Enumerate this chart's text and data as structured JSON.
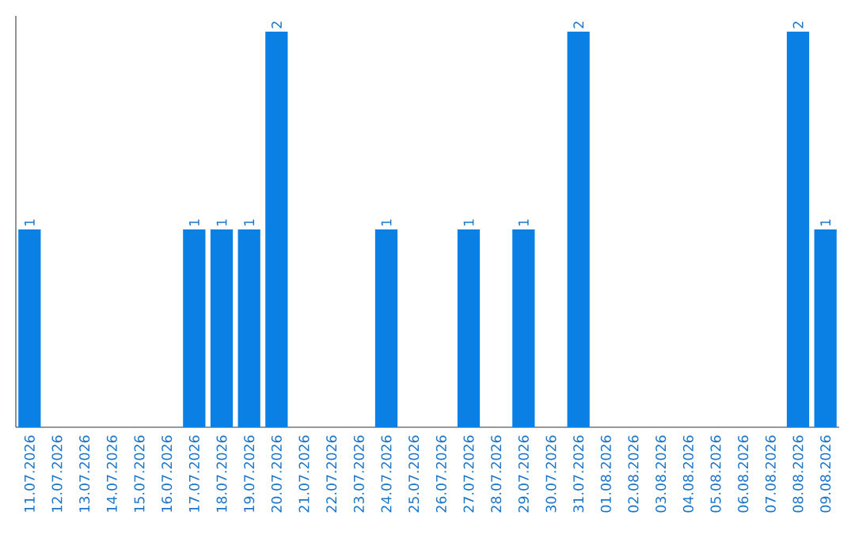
{
  "chart_data": {
    "type": "bar",
    "categories": [
      "11.07.2026",
      "12.07.2026",
      "13.07.2026",
      "14.07.2026",
      "15.07.2026",
      "16.07.2026",
      "17.07.2026",
      "18.07.2026",
      "19.07.2026",
      "20.07.2026",
      "21.07.2026",
      "22.07.2026",
      "23.07.2026",
      "24.07.2026",
      "25.07.2026",
      "26.07.2026",
      "27.07.2026",
      "28.07.2026",
      "29.07.2026",
      "30.07.2026",
      "31.07.2026",
      "01.08.2026",
      "02.08.2026",
      "03.08.2026",
      "04.08.2026",
      "05.08.2026",
      "06.08.2026",
      "07.08.2026",
      "08.08.2026",
      "09.08.2026"
    ],
    "values": [
      1,
      0,
      0,
      0,
      0,
      0,
      1,
      1,
      1,
      2,
      0,
      0,
      0,
      1,
      0,
      0,
      1,
      0,
      1,
      0,
      2,
      0,
      0,
      0,
      0,
      0,
      0,
      0,
      2,
      1
    ],
    "value_labels": [
      "1",
      null,
      null,
      null,
      null,
      null,
      "1",
      "1",
      "1",
      "2",
      null,
      null,
      null,
      "1",
      null,
      null,
      "1",
      null,
      "1",
      null,
      "2",
      null,
      null,
      null,
      null,
      null,
      null,
      null,
      "2",
      "1"
    ],
    "color": "#0a7fe4",
    "ylim": [
      0,
      2.08
    ],
    "tick_labels": "x"
  }
}
